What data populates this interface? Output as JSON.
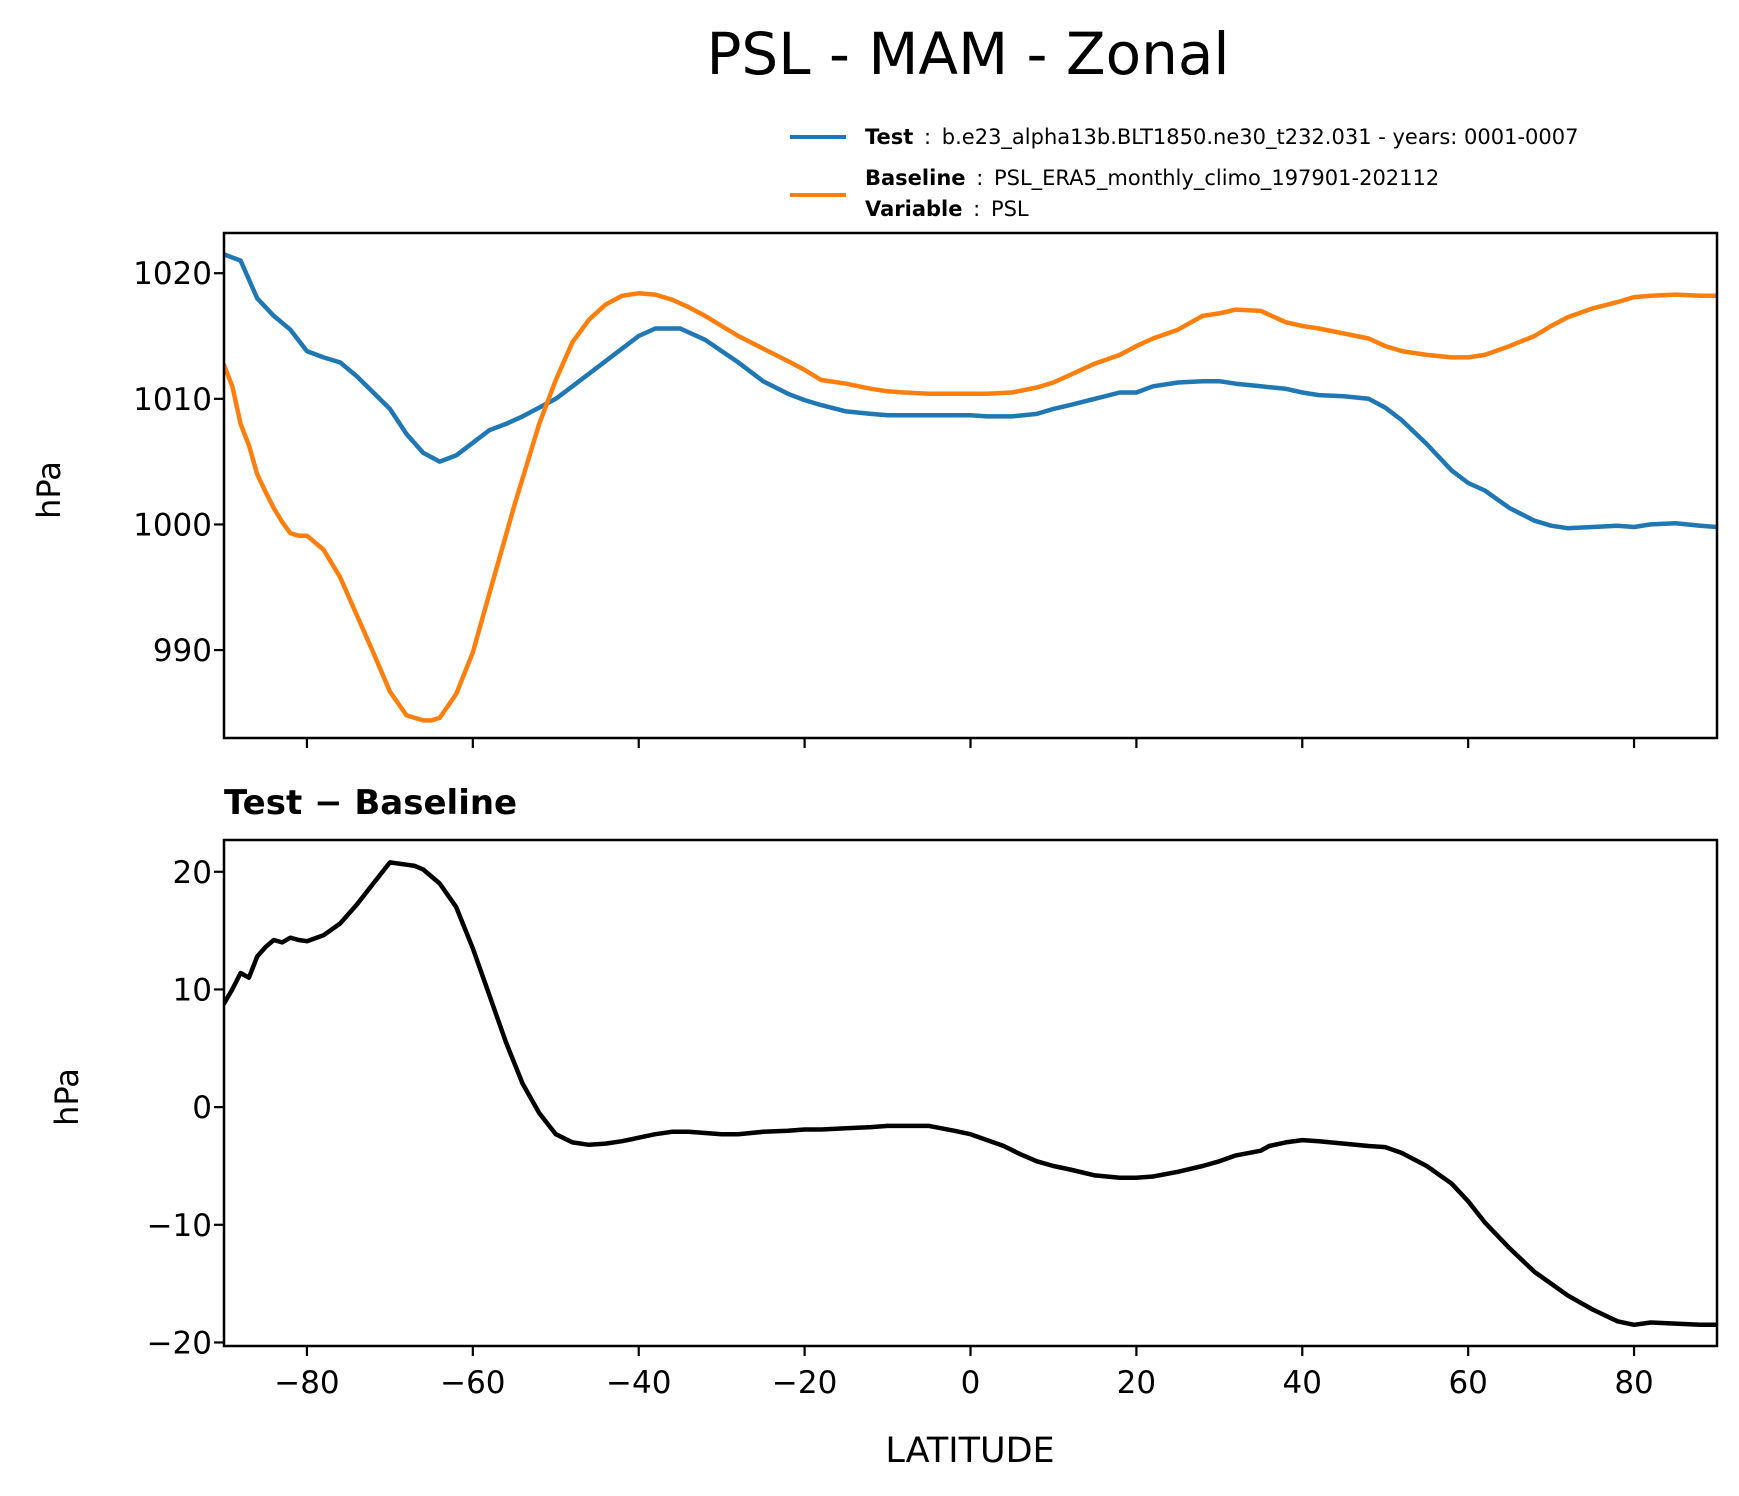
{
  "chart_data": [
    {
      "type": "line",
      "title": "PSL - MAM - Zonal",
      "xlabel": "",
      "ylabel": "hPa",
      "xlim": [
        -90,
        90
      ],
      "ylim": [
        983,
        1023.2
      ],
      "xticks": [
        -80,
        -60,
        -40,
        -20,
        0,
        20,
        40,
        60,
        80
      ],
      "yticks": [
        990,
        1000,
        1010,
        1020
      ],
      "ytick_labels": [
        "990",
        "1000",
        "1010",
        "1020"
      ],
      "legend": {
        "placement": "above-top-right",
        "entries": [
          {
            "key": "Test",
            "sep": ":",
            "text": "b.e23_alpha13b.BLT1850.ne30_t232.031 - years: 0001-0007",
            "color": "#1f77b4"
          },
          {
            "key": "Baseline",
            "sep": ":",
            "text": "PSL_ERA5_monthly_climo_197901-202112",
            "color": "#ff7f0e"
          },
          {
            "key": "Variable",
            "sep": ":",
            "text": "PSL",
            "color": ""
          }
        ]
      },
      "series": [
        {
          "name": "Test",
          "color": "#1f77b4",
          "x": [
            -90,
            -88,
            -86,
            -84,
            -82,
            -80,
            -78,
            -76,
            -74,
            -72,
            -70,
            -68,
            -66,
            -64,
            -62,
            -60,
            -58,
            -56,
            -54,
            -52,
            -50,
            -48,
            -45,
            -42,
            -40,
            -38,
            -35,
            -32,
            -30,
            -28,
            -25,
            -22,
            -20,
            -18,
            -15,
            -12,
            -10,
            -8,
            -5,
            -2,
            0,
            2,
            5,
            8,
            10,
            12,
            15,
            18,
            20,
            22,
            25,
            28,
            30,
            32,
            35,
            38,
            40,
            42,
            45,
            48,
            50,
            52,
            55,
            58,
            60,
            62,
            65,
            68,
            70,
            72,
            75,
            78,
            80,
            82,
            85,
            88,
            90
          ],
          "values": [
            1021.5,
            1021,
            1018,
            1016.6,
            1015.5,
            1013.8,
            1013.3,
            1012.9,
            1011.8,
            1010.5,
            1009.2,
            1007.2,
            1005.7,
            1005,
            1005.5,
            1006.5,
            1007.5,
            1008,
            1008.6,
            1009.3,
            1010,
            1011,
            1012.5,
            1014,
            1015,
            1015.6,
            1015.6,
            1014.7,
            1013.8,
            1012.9,
            1011.4,
            1010.4,
            1009.9,
            1009.5,
            1009,
            1008.8,
            1008.7,
            1008.7,
            1008.7,
            1008.7,
            1008.7,
            1008.6,
            1008.6,
            1008.8,
            1009.2,
            1009.5,
            1010,
            1010.5,
            1010.5,
            1011,
            1011.3,
            1011.4,
            1011.4,
            1011.2,
            1011,
            1010.8,
            1010.5,
            1010.3,
            1010.2,
            1010,
            1009.3,
            1008.3,
            1006.4,
            1004.3,
            1003.3,
            1002.7,
            1001.3,
            1000.3,
            999.9,
            999.7,
            999.8,
            999.9,
            999.8,
            1000,
            1000.1,
            999.9,
            999.8
          ]
        },
        {
          "name": "Baseline",
          "color": "#ff7f0e",
          "x": [
            -90,
            -89,
            -88,
            -87,
            -86,
            -85,
            -84,
            -83,
            -82,
            -81,
            -80,
            -78,
            -76,
            -74,
            -72,
            -70,
            -68,
            -66,
            -65,
            -64,
            -62,
            -60,
            -58,
            -55,
            -52,
            -50,
            -48,
            -46,
            -44,
            -42,
            -40,
            -38,
            -36,
            -34,
            -32,
            -30,
            -28,
            -25,
            -22,
            -20,
            -18,
            -15,
            -12,
            -10,
            -8,
            -5,
            -2,
            0,
            2,
            5,
            8,
            10,
            12,
            15,
            18,
            20,
            22,
            25,
            28,
            30,
            32,
            35,
            36,
            38,
            40,
            42,
            45,
            48,
            50,
            52,
            55,
            58,
            60,
            62,
            65,
            68,
            70,
            72,
            75,
            78,
            80,
            82,
            85,
            88,
            90
          ],
          "values": [
            1012.7,
            1011,
            1008,
            1006.3,
            1004,
            1002.6,
            1001.3,
            1000.2,
            999.3,
            999.1,
            999.1,
            998,
            995.8,
            992.8,
            989.8,
            986.7,
            984.8,
            984.4,
            984.4,
            984.6,
            986.5,
            989.8,
            994.5,
            1001.5,
            1008,
            1011.5,
            1014.5,
            1016.3,
            1017.5,
            1018.2,
            1018.4,
            1018.3,
            1017.9,
            1017.3,
            1016.6,
            1015.8,
            1015,
            1014,
            1013,
            1012.3,
            1011.5,
            1011.2,
            1010.8,
            1010.6,
            1010.5,
            1010.4,
            1010.4,
            1010.4,
            1010.4,
            1010.5,
            1010.9,
            1011.3,
            1011.9,
            1012.8,
            1013.5,
            1014.2,
            1014.8,
            1015.5,
            1016.6,
            1016.8,
            1017.1,
            1017,
            1016.7,
            1016.1,
            1015.8,
            1015.6,
            1015.2,
            1014.8,
            1014.2,
            1013.8,
            1013.5,
            1013.3,
            1013.3,
            1013.5,
            1014.2,
            1015,
            1015.8,
            1016.5,
            1017.2,
            1017.7,
            1018.1,
            1018.2,
            1018.3,
            1018.2,
            1018.2
          ]
        }
      ]
    },
    {
      "type": "line",
      "title": "Test − Baseline",
      "xlabel": "LATITUDE",
      "ylabel": "hPa",
      "xlim": [
        -90,
        90
      ],
      "ylim": [
        -20.3,
        22.7
      ],
      "xticks": [
        -80,
        -60,
        -40,
        -20,
        0,
        20,
        40,
        60,
        80
      ],
      "xtick_labels": [
        "−80",
        "−60",
        "−40",
        "−20",
        "0",
        "20",
        "40",
        "60",
        "80"
      ],
      "yticks": [
        -20,
        -10,
        0,
        10,
        20
      ],
      "ytick_labels": [
        "−20",
        "−10",
        "0",
        "10",
        "20"
      ],
      "series": [
        {
          "name": "Test − Baseline",
          "color": "#000000",
          "x": [
            -90,
            -89,
            -88,
            -87,
            -86,
            -85,
            -84,
            -83,
            -82,
            -81,
            -80,
            -78,
            -76,
            -74,
            -72,
            -70,
            -68,
            -67,
            -66,
            -64,
            -62,
            -60,
            -58,
            -56,
            -54,
            -52,
            -50,
            -48,
            -46,
            -44,
            -42,
            -40,
            -38,
            -36,
            -34,
            -32,
            -30,
            -28,
            -25,
            -22,
            -20,
            -18,
            -15,
            -12,
            -10,
            -8,
            -5,
            -2,
            0,
            2,
            4,
            6,
            8,
            10,
            12,
            15,
            18,
            20,
            22,
            25,
            28,
            30,
            32,
            35,
            36,
            38,
            40,
            42,
            45,
            48,
            50,
            52,
            55,
            58,
            60,
            62,
            65,
            68,
            70,
            72,
            75,
            78,
            80,
            82,
            85,
            88,
            90
          ],
          "values": [
            8.8,
            10,
            11.4,
            11,
            12.8,
            13.6,
            14.2,
            14,
            14.4,
            14.2,
            14.1,
            14.6,
            15.6,
            17.2,
            19,
            20.8,
            20.6,
            20.5,
            20.2,
            19,
            17,
            13.5,
            9.5,
            5.5,
            2,
            -0.5,
            -2.3,
            -3,
            -3.2,
            -3.1,
            -2.9,
            -2.6,
            -2.3,
            -2.1,
            -2.1,
            -2.2,
            -2.3,
            -2.3,
            -2.1,
            -2,
            -1.9,
            -1.9,
            -1.8,
            -1.7,
            -1.6,
            -1.6,
            -1.6,
            -2,
            -2.3,
            -2.8,
            -3.3,
            -4,
            -4.6,
            -5,
            -5.3,
            -5.8,
            -6,
            -6,
            -5.9,
            -5.5,
            -5,
            -4.6,
            -4.1,
            -3.7,
            -3.3,
            -3,
            -2.8,
            -2.9,
            -3.1,
            -3.3,
            -3.4,
            -3.9,
            -5,
            -6.5,
            -8,
            -9.8,
            -12,
            -14,
            -15,
            -16,
            -17.2,
            -18.2,
            -18.5,
            -18.3,
            -18.4,
            -18.5,
            -18.5
          ]
        }
      ]
    }
  ]
}
